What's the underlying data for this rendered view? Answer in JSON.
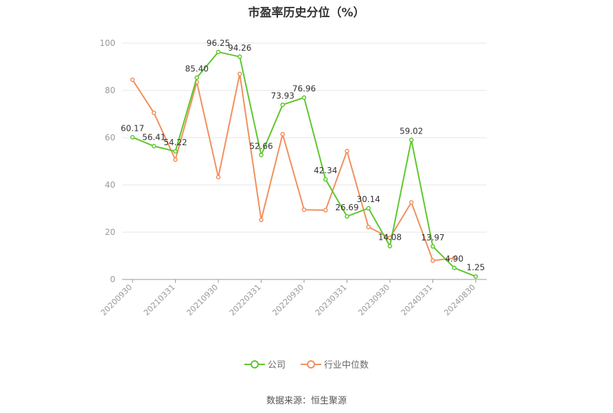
{
  "chart_data": {
    "type": "line",
    "title": "市盈率历史分位（%）",
    "xlabel": "",
    "ylabel": "",
    "ylim": [
      0,
      100
    ],
    "yticks": [
      0,
      20,
      40,
      60,
      80,
      100
    ],
    "x": [
      "20200930",
      "20201231",
      "20210331",
      "20210630",
      "20210930",
      "20211231",
      "20220331",
      "20220630",
      "20220930",
      "20221231",
      "20230331",
      "20230630",
      "20230930",
      "20231231",
      "20240331",
      "20240630",
      "20240830"
    ],
    "xtick_labels": [
      "20200930",
      "20210331",
      "20210930",
      "20220331",
      "20220930",
      "20230331",
      "20230930",
      "20240331",
      "20240830"
    ],
    "series": [
      {
        "name": "公司",
        "color": "#5cc72b",
        "show_labels": true,
        "values": [
          60.17,
          56.41,
          54.22,
          85.4,
          96.25,
          94.26,
          52.66,
          73.93,
          76.96,
          42.34,
          26.69,
          30.14,
          14.08,
          59.02,
          13.97,
          4.9,
          1.25
        ]
      },
      {
        "name": "行业中位数",
        "color": "#f28e5b",
        "show_labels": false,
        "values": [
          84.5,
          70.5,
          50.7,
          83.5,
          43.3,
          87.0,
          25.2,
          61.5,
          29.5,
          29.3,
          54.3,
          22.2,
          17.6,
          32.6,
          8.0,
          9.0,
          null
        ]
      }
    ],
    "legend_position": "bottom",
    "grid": true
  },
  "source_text": "数据来源：恒生聚源"
}
